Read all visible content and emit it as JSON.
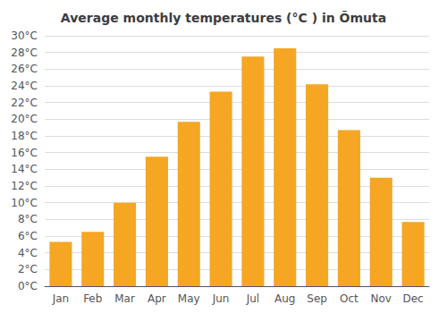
{
  "chart_data": {
    "type": "bar",
    "title": "Average monthly temperatures (°C ) in Ōmuta",
    "categories": [
      "Jan",
      "Feb",
      "Mar",
      "Apr",
      "May",
      "Jun",
      "Jul",
      "Aug",
      "Sep",
      "Oct",
      "Nov",
      "Dec"
    ],
    "values": [
      5.3,
      6.5,
      10.0,
      15.5,
      19.7,
      23.3,
      27.5,
      28.5,
      24.2,
      18.7,
      13.0,
      7.7
    ],
    "color": "#F5A623",
    "ylim": [
      0,
      30
    ],
    "yticks": [
      {
        "value": 0,
        "label": "0°C"
      },
      {
        "value": 2,
        "label": "2°C"
      },
      {
        "value": 4,
        "label": "4°C"
      },
      {
        "value": 6,
        "label": "6°C"
      },
      {
        "value": 8,
        "label": "8°C"
      },
      {
        "value": 10,
        "label": "10°C"
      },
      {
        "value": 12,
        "label": "12°C"
      },
      {
        "value": 14,
        "label": "14°C"
      },
      {
        "value": 16,
        "label": "16°C"
      },
      {
        "value": 18,
        "label": "18°C"
      },
      {
        "value": 20,
        "label": "20°C"
      },
      {
        "value": 22,
        "label": "22°C"
      },
      {
        "value": 24,
        "label": "24°C"
      },
      {
        "value": 26,
        "label": "26°C"
      },
      {
        "value": 28,
        "label": "28°C"
      },
      {
        "value": 30,
        "label": "30°C"
      }
    ],
    "grid": true
  }
}
